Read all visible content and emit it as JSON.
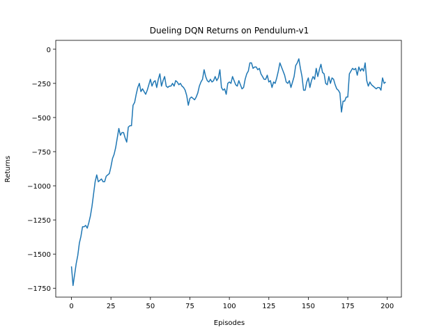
{
  "chart_data": {
    "type": "line",
    "title": "Dueling DQN Returns on Pendulum-v1",
    "x_label": "Episodes",
    "y_label": "Returns",
    "color": "#1f77b4",
    "xlim": [
      -9.95,
      208.95
    ],
    "xticks": [
      0,
      25,
      50,
      75,
      100,
      125,
      150,
      175,
      200
    ],
    "ylim": [
      -1815,
      65
    ],
    "yticks": [
      0,
      {
        "value": -250,
        "label": "−250"
      },
      {
        "value": -500,
        "label": "−500"
      },
      {
        "value": -750,
        "label": "−750"
      },
      {
        "value": -1000,
        "label": "−1000"
      },
      {
        "value": -1250,
        "label": "−1250"
      },
      {
        "value": -1500,
        "label": "−1500"
      },
      {
        "value": -1750,
        "label": "−1750"
      }
    ],
    "values": [
      -1590,
      -1730,
      -1650,
      -1570,
      -1510,
      -1420,
      -1370,
      -1300,
      -1300,
      -1290,
      -1310,
      -1270,
      -1220,
      -1150,
      -1060,
      -970,
      -920,
      -970,
      -960,
      -950,
      -970,
      -970,
      -930,
      -920,
      -910,
      -860,
      -800,
      -770,
      -720,
      -650,
      -580,
      -630,
      -610,
      -610,
      -650,
      -680,
      -570,
      -560,
      -560,
      -410,
      -390,
      -330,
      -280,
      -250,
      -310,
      -290,
      -310,
      -330,
      -300,
      -260,
      -220,
      -270,
      -240,
      -230,
      -280,
      -220,
      -180,
      -270,
      -230,
      -200,
      -270,
      -280,
      -270,
      -270,
      -250,
      -270,
      -230,
      -240,
      -260,
      -250,
      -270,
      -280,
      -300,
      -340,
      -410,
      -360,
      -350,
      -360,
      -370,
      -350,
      -320,
      -270,
      -240,
      -220,
      -150,
      -200,
      -230,
      -240,
      -220,
      -240,
      -230,
      -200,
      -230,
      -210,
      -150,
      -280,
      -300,
      -290,
      -330,
      -250,
      -240,
      -250,
      -200,
      -230,
      -260,
      -270,
      -230,
      -260,
      -290,
      -280,
      -220,
      -180,
      -160,
      -100,
      -100,
      -140,
      -130,
      -130,
      -150,
      -140,
      -180,
      -200,
      -220,
      -220,
      -190,
      -240,
      -230,
      -280,
      -240,
      -250,
      -210,
      -160,
      -100,
      -130,
      -160,
      -190,
      -240,
      -250,
      -230,
      -280,
      -240,
      -200,
      -120,
      -100,
      -70,
      -140,
      -200,
      -300,
      -300,
      -240,
      -210,
      -280,
      -230,
      -200,
      -220,
      -140,
      -200,
      -150,
      -110,
      -170,
      -180,
      -250,
      -260,
      -200,
      -250,
      -210,
      -220,
      -260,
      -290,
      -300,
      -320,
      -460,
      -380,
      -380,
      -350,
      -350,
      -180,
      -160,
      -140,
      -150,
      -140,
      -190,
      -130,
      -160,
      -140,
      -160,
      -100,
      -230,
      -270,
      -240,
      -260,
      -270,
      -280,
      -290,
      -280,
      -280,
      -300,
      -210,
      -250,
      -240
    ]
  }
}
